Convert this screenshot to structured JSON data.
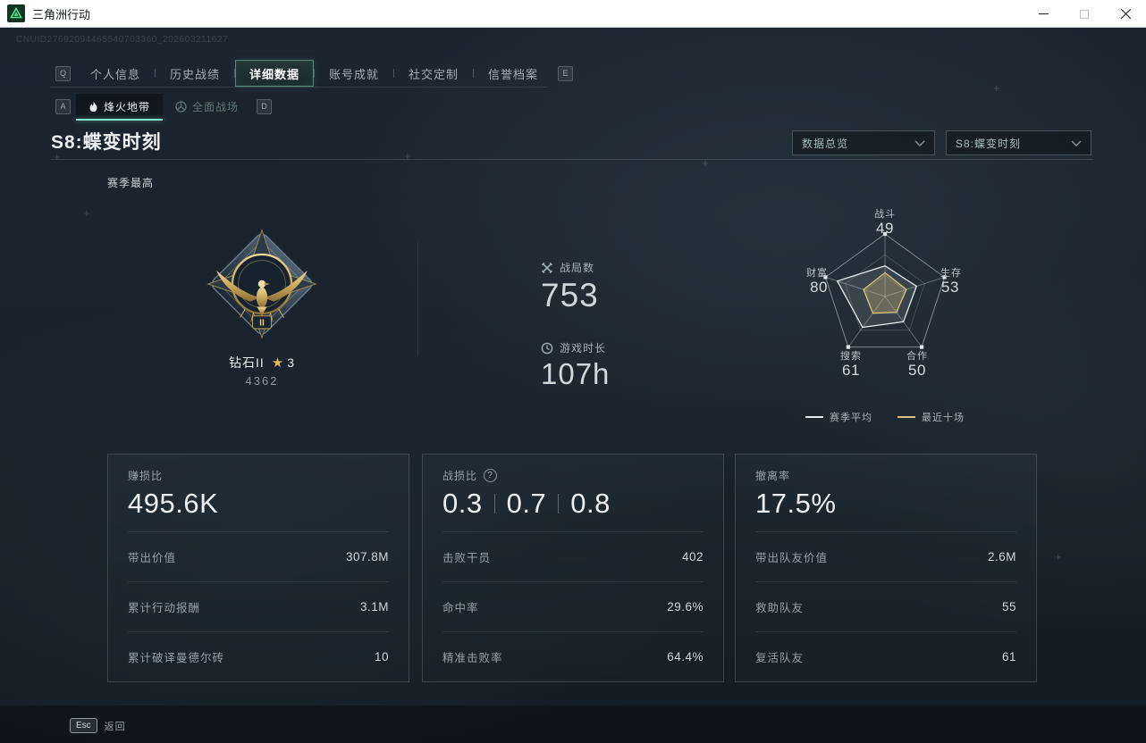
{
  "window": {
    "title": "三角洲行动"
  },
  "uid": "CNUID27692094465540703360_202603211627",
  "decor": {
    "cross": "+"
  },
  "nav": {
    "prev_key": "Q",
    "next_key": "E",
    "tabs": [
      {
        "label": "个人信息",
        "active": false
      },
      {
        "label": "历史战绩",
        "active": false
      },
      {
        "label": "详细数据",
        "active": true
      },
      {
        "label": "账号成就",
        "active": false
      },
      {
        "label": "社交定制",
        "active": false
      },
      {
        "label": "信誉档案",
        "active": false
      }
    ]
  },
  "subnav": {
    "prev_key": "A",
    "next_key": "D",
    "tabs": [
      {
        "label": "烽火地带",
        "active": true
      },
      {
        "label": "全面战场",
        "active": false
      }
    ]
  },
  "section": {
    "title": "S8:蝶变时刻",
    "filters": [
      {
        "value": "数据总览"
      },
      {
        "value": "S8:蝶变时刻"
      }
    ]
  },
  "season_best": {
    "label": "赛季最高",
    "rank": "钻石II",
    "star": "★",
    "star_count": "3",
    "points": "4362",
    "medal_numeral": "II"
  },
  "overview": {
    "stats": [
      {
        "icon": "crossed-swords",
        "label": "战局数",
        "value": "753"
      },
      {
        "icon": "clock",
        "label": "游戏时长",
        "value": "107h"
      }
    ]
  },
  "chart_data": {
    "type": "radar",
    "axes": [
      "战斗",
      "生存",
      "合作",
      "搜索",
      "财富"
    ],
    "max": 100,
    "grid": "pentagon, 3 levels, spokes, square vertex markers",
    "legend_position": "bottom",
    "series": [
      {
        "name": "赛季平均",
        "values": [
          49,
          53,
          50,
          61,
          80
        ],
        "color": "#e3ebef"
      },
      {
        "name": "最近十场",
        "values": [
          38,
          36,
          31,
          33,
          36
        ],
        "color": "#d9c27a",
        "note": "values estimated from plot; not labeled on screen"
      }
    ]
  },
  "cards": [
    {
      "title": "赚损比",
      "value": "495.6K",
      "rows": [
        {
          "label": "带出价值",
          "value": "307.8M"
        },
        {
          "label": "累计行动报酬",
          "value": "3.1M"
        },
        {
          "label": "累计破译曼德尔砖",
          "value": "10"
        }
      ]
    },
    {
      "title": "战损比",
      "help": "?",
      "values": [
        "0.3",
        "0.7",
        "0.8"
      ],
      "rows": [
        {
          "label": "击败干员",
          "value": "402"
        },
        {
          "label": "命中率",
          "value": "29.6%"
        },
        {
          "label": "精准击败率",
          "value": "64.4%"
        }
      ]
    },
    {
      "title": "撤离率",
      "value": "17.5%",
      "rows": [
        {
          "label": "带出队友价值",
          "value": "2.6M"
        },
        {
          "label": "救助队友",
          "value": "55"
        },
        {
          "label": "复活队友",
          "value": "61"
        }
      ]
    }
  ],
  "footer": {
    "key": "Esc",
    "label": "返回"
  }
}
